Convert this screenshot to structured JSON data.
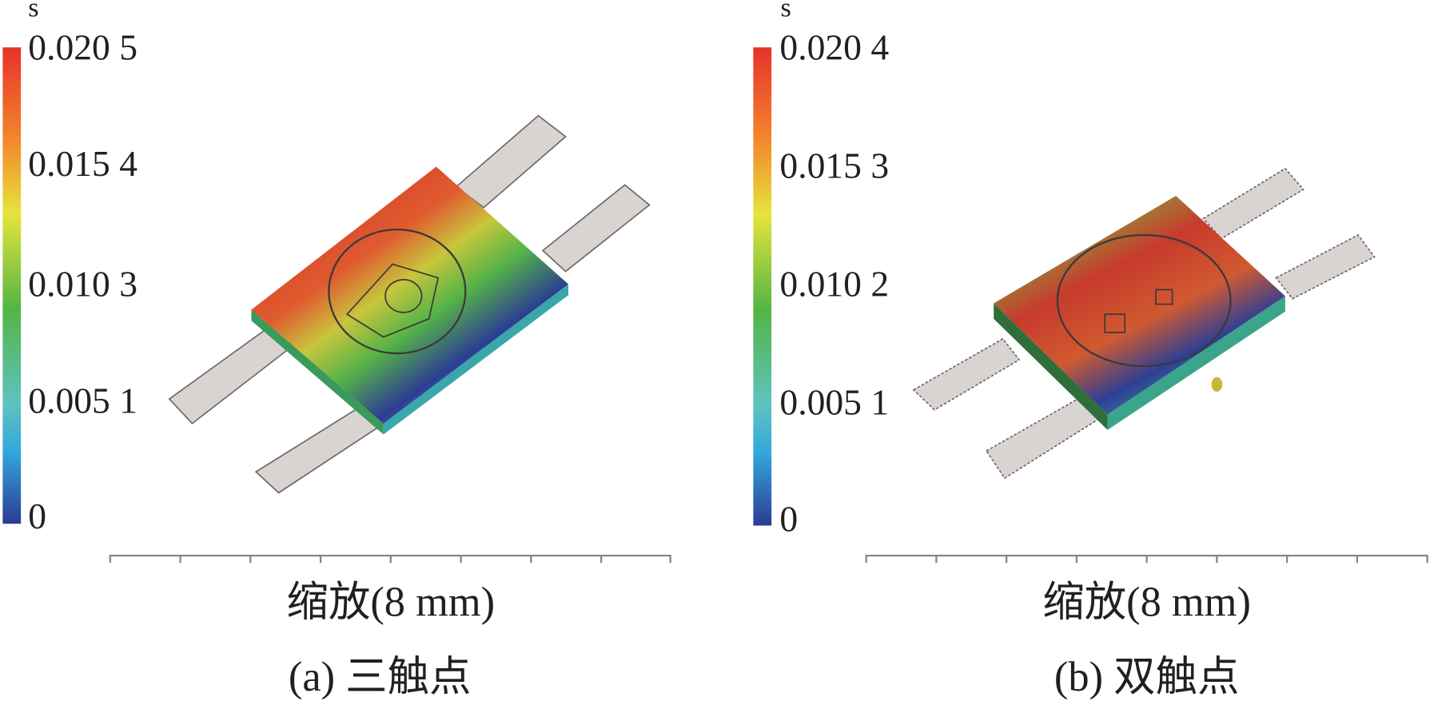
{
  "panels": [
    {
      "unit": "s",
      "colorbar_labels": [
        "0.020 5",
        "0.015 4",
        "0.010 3",
        "0.005 1",
        "0"
      ],
      "scale_label": "缩放(8 mm)",
      "caption": "(a) 三触点"
    },
    {
      "unit": "s",
      "colorbar_labels": [
        "0.020 4",
        "0.015 3",
        "0.010 2",
        "0.005 1",
        "0"
      ],
      "scale_label": "缩放(8 mm)",
      "caption": "(b) 双触点"
    }
  ]
}
